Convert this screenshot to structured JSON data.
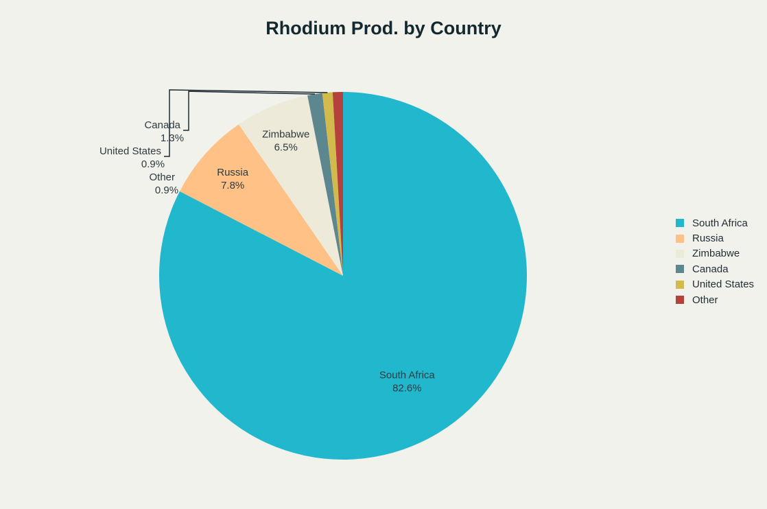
{
  "chart_data": {
    "type": "pie",
    "title": "Rhodium Prod. by Country",
    "slices": [
      {
        "label": "South Africa",
        "value": 82.6,
        "display": "82.6%",
        "color": "#21b8cd"
      },
      {
        "label": "Russia",
        "value": 7.8,
        "display": "7.8%",
        "color": "#ffc185"
      },
      {
        "label": "Zimbabwe",
        "value": 6.5,
        "display": "6.5%",
        "color": "#eeead9"
      },
      {
        "label": "Canada",
        "value": 1.3,
        "display": "1.3%",
        "color": "#5d878f"
      },
      {
        "label": "United States",
        "value": 0.9,
        "display": "0.9%",
        "color": "#d2ba4c"
      },
      {
        "label": "Other",
        "value": 0.9,
        "display": "0.9%",
        "color": "#b4413c"
      }
    ],
    "legend_position": "right"
  }
}
